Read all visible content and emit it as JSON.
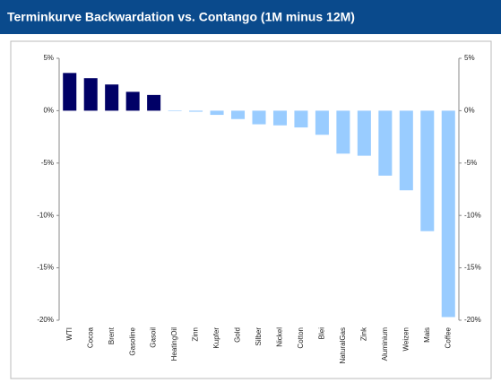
{
  "chart_data": {
    "type": "bar",
    "title": "Terminkurve Backwardation vs. Contango (1M minus 12M)",
    "categories": [
      "WTI",
      "Cocoa",
      "Brent",
      "Gasoline",
      "Gasoil",
      "HeatingOil",
      "Zinn",
      "Kupfer",
      "Gold",
      "Silber",
      "Nickel",
      "Cotton",
      "Blei",
      "NaturalGas",
      "Zink",
      "Aluminium",
      "Weizen",
      "Mais",
      "Coffee"
    ],
    "values": [
      3.6,
      3.1,
      2.5,
      1.8,
      1.5,
      -0.05,
      -0.1,
      -0.4,
      -0.8,
      -1.3,
      -1.4,
      -1.6,
      -2.3,
      -4.1,
      -4.3,
      -6.2,
      -7.6,
      -11.5,
      -19.7
    ],
    "color_positive": "#000066",
    "color_negative": "#99ccff",
    "ylim": [
      -20,
      5
    ],
    "yticks": [
      {
        "value": 5,
        "label": "5%"
      },
      {
        "value": 0,
        "label": "0%"
      },
      {
        "value": -5,
        "label": "-5%"
      },
      {
        "value": -10,
        "label": "-10%"
      },
      {
        "value": -15,
        "label": "-15%"
      },
      {
        "value": -20,
        "label": "-20%"
      }
    ],
    "grid": false
  }
}
